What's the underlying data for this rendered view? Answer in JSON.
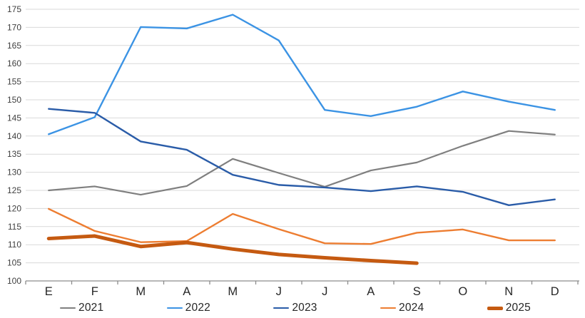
{
  "chart_data": {
    "type": "line",
    "title": "",
    "xlabel": "",
    "ylabel": "",
    "x_tick_labels": [
      "E",
      "F",
      "M",
      "A",
      "M",
      "J",
      "J",
      "A",
      "S",
      "O",
      "N",
      "D"
    ],
    "y_axis": {
      "min": 100,
      "max": 175,
      "step": 5
    },
    "grid": "horizontal",
    "legend_position": "bottom",
    "series": [
      {
        "name": "2021",
        "color": "#7F7F7F",
        "line_width": 2.2,
        "values": [
          125.0,
          126.1,
          123.8,
          126.2,
          133.7,
          129.8,
          126.0,
          130.5,
          132.7,
          137.3,
          141.4,
          140.4
        ]
      },
      {
        "name": "2022",
        "color": "#3B93E4",
        "line_width": 2.4,
        "values": [
          140.5,
          145.2,
          170.1,
          169.7,
          173.5,
          166.4,
          147.2,
          145.5,
          148.1,
          152.3,
          149.5,
          147.2
        ]
      },
      {
        "name": "2023",
        "color": "#2A5CA8",
        "line_width": 2.4,
        "values": [
          147.5,
          146.4,
          138.5,
          136.2,
          129.3,
          126.5,
          125.8,
          124.8,
          126.1,
          124.6,
          120.9,
          122.5
        ]
      },
      {
        "name": "2024",
        "color": "#ED7D31",
        "line_width": 2.4,
        "values": [
          119.9,
          113.8,
          110.7,
          111.0,
          118.5,
          114.3,
          110.4,
          110.2,
          113.3,
          114.2,
          111.2,
          111.2
        ]
      },
      {
        "name": "2025",
        "color": "#C55A11",
        "line_width": 5,
        "values": [
          111.7,
          112.4,
          109.5,
          110.6,
          108.8,
          107.3,
          106.4,
          105.6,
          104.9
        ]
      }
    ]
  },
  "styles": {
    "background": "#FFFFFF",
    "grid_color": "#D9D9D9",
    "axis_color": "#8C8C8C",
    "y_label_color": "#404040",
    "x_label_color": "#262626"
  }
}
